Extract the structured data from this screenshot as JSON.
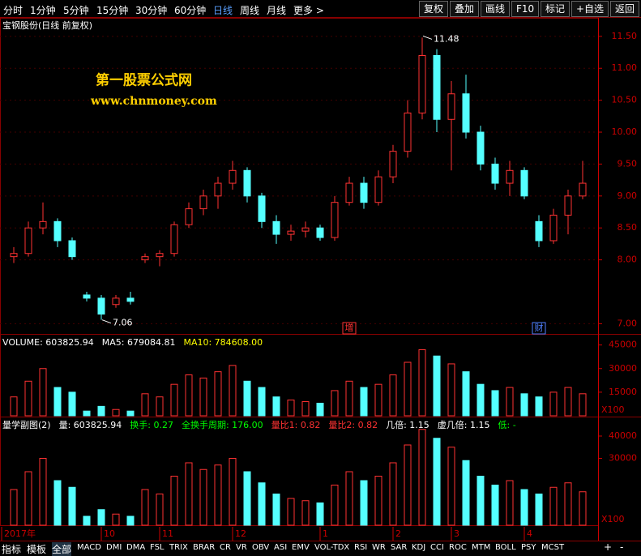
{
  "toolbar": {
    "periods": [
      "分时",
      "1分钟",
      "5分钟",
      "15分钟",
      "30分钟",
      "60分钟",
      "日线",
      "周线",
      "月线",
      "更多 >"
    ],
    "active": 6,
    "buttons": [
      "复权",
      "叠加",
      "画线",
      "F10",
      "标记",
      "+自选",
      "返回"
    ]
  },
  "chart_data": [
    {
      "type": "candlestick",
      "title": "宝钢股份(日线 前复权)",
      "watermark": [
        "第一股票公式网",
        "www.chnmoney.com"
      ],
      "open": [
        8.05,
        8.1,
        8.5,
        8.6,
        8.3,
        7.45,
        7.4,
        7.3,
        7.4,
        8.0,
        8.05,
        8.1,
        8.55,
        8.8,
        9.0,
        9.2,
        9.4,
        9.0,
        8.6,
        8.4,
        8.45,
        8.5,
        8.35,
        8.9,
        9.2,
        8.9,
        9.3,
        9.7,
        10.3,
        11.2,
        10.2,
        10.6,
        10.0,
        9.5,
        9.2,
        9.4,
        8.6,
        8.3,
        8.7,
        9.0
      ],
      "high": [
        8.2,
        8.6,
        8.9,
        8.65,
        8.35,
        7.5,
        7.45,
        7.45,
        7.5,
        8.1,
        8.15,
        8.6,
        8.9,
        9.1,
        9.3,
        9.55,
        9.45,
        9.05,
        8.7,
        8.55,
        8.6,
        8.55,
        9.0,
        9.3,
        9.3,
        9.4,
        9.8,
        10.5,
        11.48,
        11.3,
        10.8,
        10.9,
        10.1,
        9.6,
        9.55,
        9.45,
        8.7,
        8.8,
        9.1,
        9.55
      ],
      "low": [
        7.95,
        8.05,
        8.4,
        8.2,
        8.0,
        7.35,
        7.06,
        7.25,
        7.3,
        7.95,
        7.9,
        8.05,
        8.5,
        8.7,
        8.8,
        9.1,
        8.9,
        8.5,
        8.25,
        8.3,
        8.35,
        8.3,
        8.3,
        8.85,
        8.8,
        8.85,
        9.2,
        9.6,
        10.2,
        10.0,
        9.4,
        9.9,
        9.4,
        9.1,
        9.0,
        8.95,
        8.2,
        8.25,
        8.4,
        8.95
      ],
      "close": [
        8.1,
        8.5,
        8.6,
        8.3,
        8.05,
        7.4,
        7.15,
        7.4,
        7.35,
        8.05,
        8.1,
        8.55,
        8.8,
        9.0,
        9.2,
        9.4,
        9.0,
        8.6,
        8.4,
        8.45,
        8.5,
        8.35,
        8.9,
        9.2,
        8.9,
        9.3,
        9.7,
        10.3,
        11.2,
        10.2,
        10.6,
        10.0,
        9.5,
        9.2,
        9.4,
        9.0,
        8.3,
        8.7,
        9.0,
        9.2
      ],
      "up_color": "#ff3232",
      "down_color": "#54ffff",
      "ylim": [
        6.84,
        11.79
      ],
      "yticks": [
        {
          "value": 7,
          "label": "7.00"
        },
        {
          "value": 8,
          "label": "8.00"
        },
        {
          "value": 8.5,
          "label": "8.50"
        },
        {
          "value": 9,
          "label": "9.00"
        },
        {
          "value": 9.5,
          "label": "9.50"
        },
        {
          "value": 10,
          "label": "10.00"
        },
        {
          "value": 10.5,
          "label": "10.50"
        },
        {
          "value": 11,
          "label": "11.00"
        },
        {
          "value": 11.5,
          "label": "11.50"
        }
      ],
      "grid": true,
      "markers": [
        {
          "index": 23,
          "label": "增",
          "color": "#ff3232"
        },
        {
          "index": 36,
          "label": "财",
          "color": "#5080ff"
        }
      ]
    },
    {
      "type": "bar",
      "legend": [
        {
          "text": "VOLUME: 603825.94",
          "color": "#ffffff"
        },
        {
          "text": "MA5: 679084.81",
          "color": "#ffffff"
        },
        {
          "text": "MA10: 784608.00",
          "color": "#ffff00"
        }
      ],
      "values": [
        12000,
        22000,
        30000,
        18000,
        15000,
        3000,
        6000,
        4000,
        3000,
        14000,
        12000,
        20000,
        26000,
        24000,
        28000,
        32000,
        22000,
        18000,
        12000,
        10000,
        9000,
        8000,
        16000,
        22000,
        18000,
        20000,
        26000,
        34000,
        42000,
        38000,
        33000,
        28000,
        20000,
        16000,
        18000,
        14000,
        12000,
        15000,
        18000,
        14000
      ],
      "ylim": [
        0,
        51000
      ],
      "yticks": [
        15000,
        30000,
        45000
      ],
      "unit_label": "X100"
    },
    {
      "type": "bar",
      "legend": [
        {
          "text": "量学副图(2)",
          "color": "#ffffff"
        },
        {
          "text": "量: 603825.94",
          "color": "#ffffff"
        },
        {
          "text": "换手: 0.27",
          "color": "#00ff00"
        },
        {
          "text": "全换手周期: 176.00",
          "color": "#00ff00"
        },
        {
          "text": "量比1: 0.82",
          "color": "#ff3232"
        },
        {
          "text": "量比2: 0.82",
          "color": "#ff3232"
        },
        {
          "text": "几倍: 1.15",
          "color": "#ffffff"
        },
        {
          "text": "虚几倍: 1.15",
          "color": "#ffffff"
        },
        {
          "text": "低: -",
          "color": "#00ff00"
        }
      ],
      "values": [
        16000,
        24000,
        30000,
        20000,
        17000,
        4000,
        7000,
        5000,
        4000,
        16000,
        14000,
        22000,
        28000,
        25000,
        27000,
        30000,
        24000,
        19000,
        14000,
        12000,
        11000,
        10000,
        18000,
        24000,
        20000,
        22000,
        28000,
        36000,
        43000,
        39000,
        35000,
        29000,
        22000,
        18000,
        20000,
        16000,
        14000,
        17000,
        19000,
        15000
      ],
      "ylim": [
        0,
        48000
      ],
      "yticks": [
        30000,
        40000
      ],
      "unit_label": "X100"
    }
  ],
  "x_axis": {
    "labels": [
      {
        "index": 0,
        "label": "2017年"
      },
      {
        "index": 6,
        "label": "10"
      },
      {
        "index": 10,
        "label": "11"
      },
      {
        "index": 15,
        "label": "12"
      },
      {
        "index": 21,
        "label": "1"
      },
      {
        "index": 26,
        "label": "2"
      },
      {
        "index": 30,
        "label": "3"
      },
      {
        "index": 35,
        "label": "4"
      }
    ]
  },
  "tabs": {
    "items": [
      "指标",
      "模板",
      "全部",
      "MACD",
      "DMI",
      "DMA",
      "FSL",
      "TRIX",
      "BRAR",
      "CR",
      "VR",
      "OBV",
      "ASI",
      "EMV",
      "VOL-TDX",
      "RSI",
      "WR",
      "SAR",
      "KDJ",
      "CCI",
      "ROC",
      "MTM",
      "BOLL",
      "PSY",
      "MCST"
    ],
    "active": 2,
    "controls": [
      "+",
      "-"
    ]
  }
}
